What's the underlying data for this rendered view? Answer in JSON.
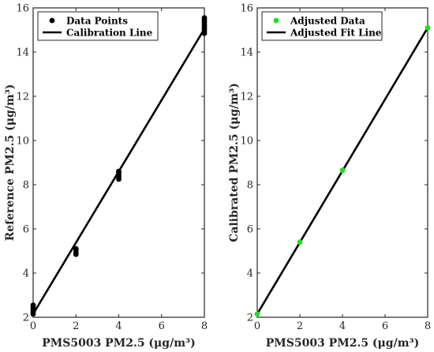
{
  "chart_data": [
    {
      "type": "scatter",
      "xlabel": "PMS5003 PM2.5 (μg/m³)",
      "ylabel": "Reference PM2.5 (μg/m³)",
      "xlim": [
        0,
        8
      ],
      "ylim": [
        2,
        16
      ],
      "xticks": [
        0,
        2,
        4,
        6,
        8
      ],
      "yticks": [
        2,
        4,
        6,
        8,
        10,
        12,
        14,
        16
      ],
      "grid": false,
      "legend_position": "top-left",
      "series": [
        {
          "name": "Data Points",
          "kind": "points",
          "color": "#000000",
          "points": [
            [
              0,
              2.15
            ],
            [
              0,
              2.25
            ],
            [
              0,
              2.35
            ],
            [
              0,
              2.45
            ],
            [
              0,
              2.55
            ],
            [
              2,
              4.85
            ],
            [
              2,
              4.95
            ],
            [
              2,
              5.05
            ],
            [
              2,
              5.1
            ],
            [
              4,
              8.25
            ],
            [
              4,
              8.35
            ],
            [
              4,
              8.45
            ],
            [
              4,
              8.55
            ],
            [
              4,
              8.6
            ],
            [
              8,
              14.85
            ],
            [
              8,
              14.95
            ],
            [
              8,
              15.05
            ],
            [
              8,
              15.15
            ],
            [
              8,
              15.25
            ],
            [
              8,
              15.35
            ],
            [
              8,
              15.45
            ],
            [
              8,
              15.55
            ]
          ]
        },
        {
          "name": "Calibration Line",
          "kind": "line",
          "color": "#000000",
          "points": [
            [
              0,
              2.15
            ],
            [
              8,
              15.05
            ]
          ]
        }
      ]
    },
    {
      "type": "scatter",
      "xlabel": "PMS5003 PM2.5 (μg/m³)",
      "ylabel": "Calibrated PM2.5 (μg/m³)",
      "xlim": [
        0,
        8
      ],
      "ylim": [
        2,
        16
      ],
      "xticks": [
        0,
        2,
        4,
        6,
        8
      ],
      "yticks": [
        2,
        4,
        6,
        8,
        10,
        12,
        14,
        16
      ],
      "grid": false,
      "legend_position": "top-left",
      "series": [
        {
          "name": "Adjusted Data",
          "kind": "points",
          "color": "#22dd22",
          "points": [
            [
              0,
              2.15
            ],
            [
              2,
              5.4
            ],
            [
              4,
              8.65
            ],
            [
              8,
              15.1
            ]
          ]
        },
        {
          "name": "Adjusted Fit Line",
          "kind": "line",
          "color": "#000000",
          "points": [
            [
              0,
              2.15
            ],
            [
              8,
              15.1
            ]
          ]
        }
      ]
    }
  ]
}
